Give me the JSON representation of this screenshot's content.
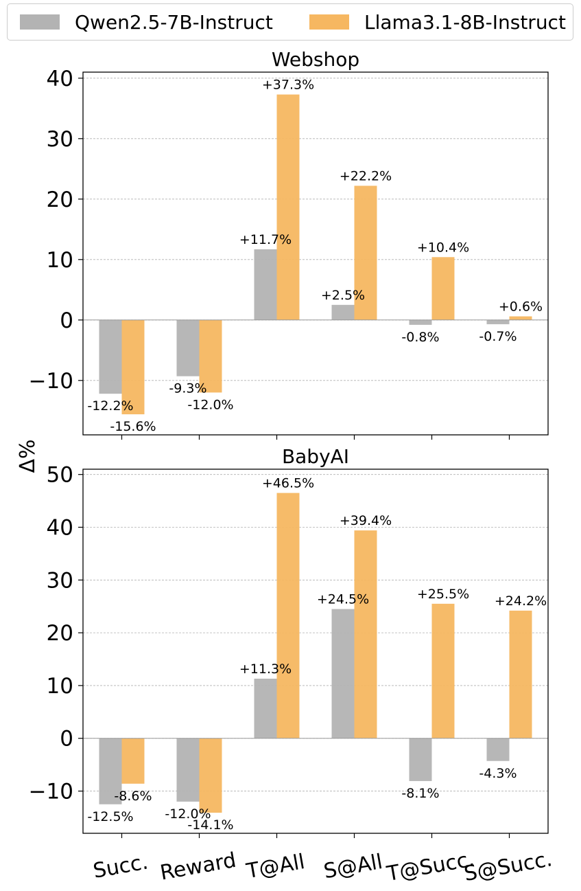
{
  "legend": {
    "items": [
      {
        "label": "Qwen2.5-7B-Instruct",
        "color": "#b3b3b3"
      },
      {
        "label": "Llama3.1-8B-Instruct",
        "color": "#f6b761"
      }
    ]
  },
  "shared_ylabel": "Δ%",
  "chart_data": [
    {
      "type": "bar",
      "title": "Webshop",
      "categories": [
        "Succ.",
        "Reward",
        "T@All",
        "S@All",
        "T@Succ.",
        "S@Succ."
      ],
      "series": [
        {
          "name": "Qwen2.5-7B-Instruct",
          "values": [
            -12.2,
            -9.3,
            11.7,
            2.5,
            -0.8,
            -0.7
          ],
          "labels": [
            "-12.2%",
            "-9.3%",
            "+11.7%",
            "+2.5%",
            "-0.8%",
            "-0.7%"
          ]
        },
        {
          "name": "Llama3.1-8B-Instruct",
          "values": [
            -15.6,
            -12.0,
            37.3,
            22.2,
            10.4,
            0.6
          ],
          "labels": [
            "-15.6%",
            "-12.0%",
            "+37.3%",
            "+22.2%",
            "+10.4%",
            "+0.6%"
          ]
        }
      ],
      "ylim": [
        -19,
        41
      ],
      "yticks": [
        -10,
        0,
        10,
        20,
        30,
        40
      ],
      "ytick_labels": [
        "−10",
        "0",
        "10",
        "20",
        "30",
        "40"
      ],
      "grid": true
    },
    {
      "type": "bar",
      "title": "BabyAI",
      "categories": [
        "Succ.",
        "Reward",
        "T@All",
        "S@All",
        "T@Succ.",
        "S@Succ."
      ],
      "series": [
        {
          "name": "Qwen2.5-7B-Instruct",
          "values": [
            -12.5,
            -12.0,
            11.3,
            24.5,
            -8.1,
            -4.3
          ],
          "labels": [
            "-12.5%",
            "-12.0%",
            "+11.3%",
            "+24.5%",
            "-8.1%",
            "-4.3%"
          ]
        },
        {
          "name": "Llama3.1-8B-Instruct",
          "values": [
            -8.6,
            -14.1,
            46.5,
            39.4,
            25.5,
            24.2
          ],
          "labels": [
            "-8.6%",
            "-14.1%",
            "+46.5%",
            "+39.4%",
            "+25.5%",
            "+24.2%"
          ]
        }
      ],
      "ylim": [
        -18,
        51
      ],
      "yticks": [
        -10,
        0,
        10,
        20,
        30,
        40,
        50
      ],
      "ytick_labels": [
        "−10",
        "0",
        "10",
        "20",
        "30",
        "40",
        "50"
      ],
      "grid": true
    }
  ]
}
